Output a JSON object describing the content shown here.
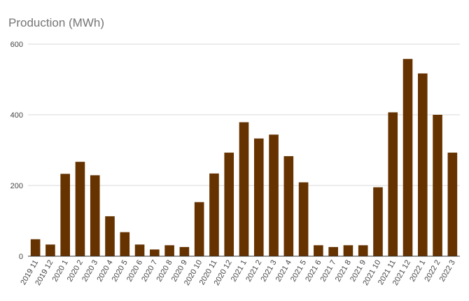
{
  "chart_data": {
    "type": "bar",
    "title": "Production (MWh)",
    "xlabel": "",
    "ylabel": "",
    "ylim": [
      0,
      600
    ],
    "yticks": [
      "0",
      "200",
      "400",
      "600"
    ],
    "grid": true,
    "bar_color": "#663300",
    "categories": [
      "2019 11",
      "2019 12",
      "2020 1",
      "2020 2",
      "2020 3",
      "2020 4",
      "2020 5",
      "2020 6",
      "2020 7",
      "2020 8",
      "2020 9",
      "2020 10",
      "2020 11",
      "2020 12",
      "2021 1",
      "2021 2",
      "2021 3",
      "2021 4",
      "2021 5",
      "2021 6",
      "2021 7",
      "2021 8",
      "2021 9",
      "2021 10",
      "2021 11",
      "2021 12",
      "2022 1",
      "2022 2",
      "2022 3"
    ],
    "values": [
      48,
      33,
      233,
      267,
      229,
      113,
      68,
      33,
      19,
      31,
      26,
      153,
      234,
      293,
      379,
      333,
      344,
      283,
      209,
      31,
      26,
      31,
      31,
      195,
      407,
      558,
      517,
      400,
      293
    ]
  }
}
